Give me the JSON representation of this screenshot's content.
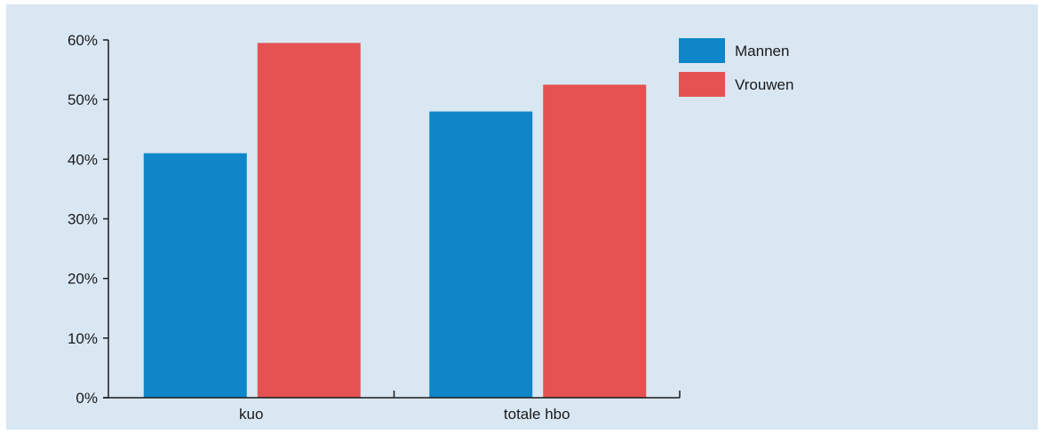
{
  "chart_data": {
    "type": "bar",
    "categories": [
      "kuo",
      "totale hbo"
    ],
    "series": [
      {
        "name": "Mannen",
        "values": [
          41,
          48
        ],
        "color": "#0e86c8"
      },
      {
        "name": "Vrouwen",
        "values": [
          59.5,
          52.5
        ],
        "color": "#e45252"
      }
    ],
    "ylim": [
      0,
      60
    ],
    "yticks": [
      0,
      10,
      20,
      30,
      40,
      50,
      60
    ],
    "ytick_labels": [
      "0%",
      "10%",
      "20%",
      "30%",
      "40%",
      "50%",
      "60%"
    ],
    "grid": false,
    "legend_position": "top-right",
    "background_color": "#d9e7f3"
  }
}
